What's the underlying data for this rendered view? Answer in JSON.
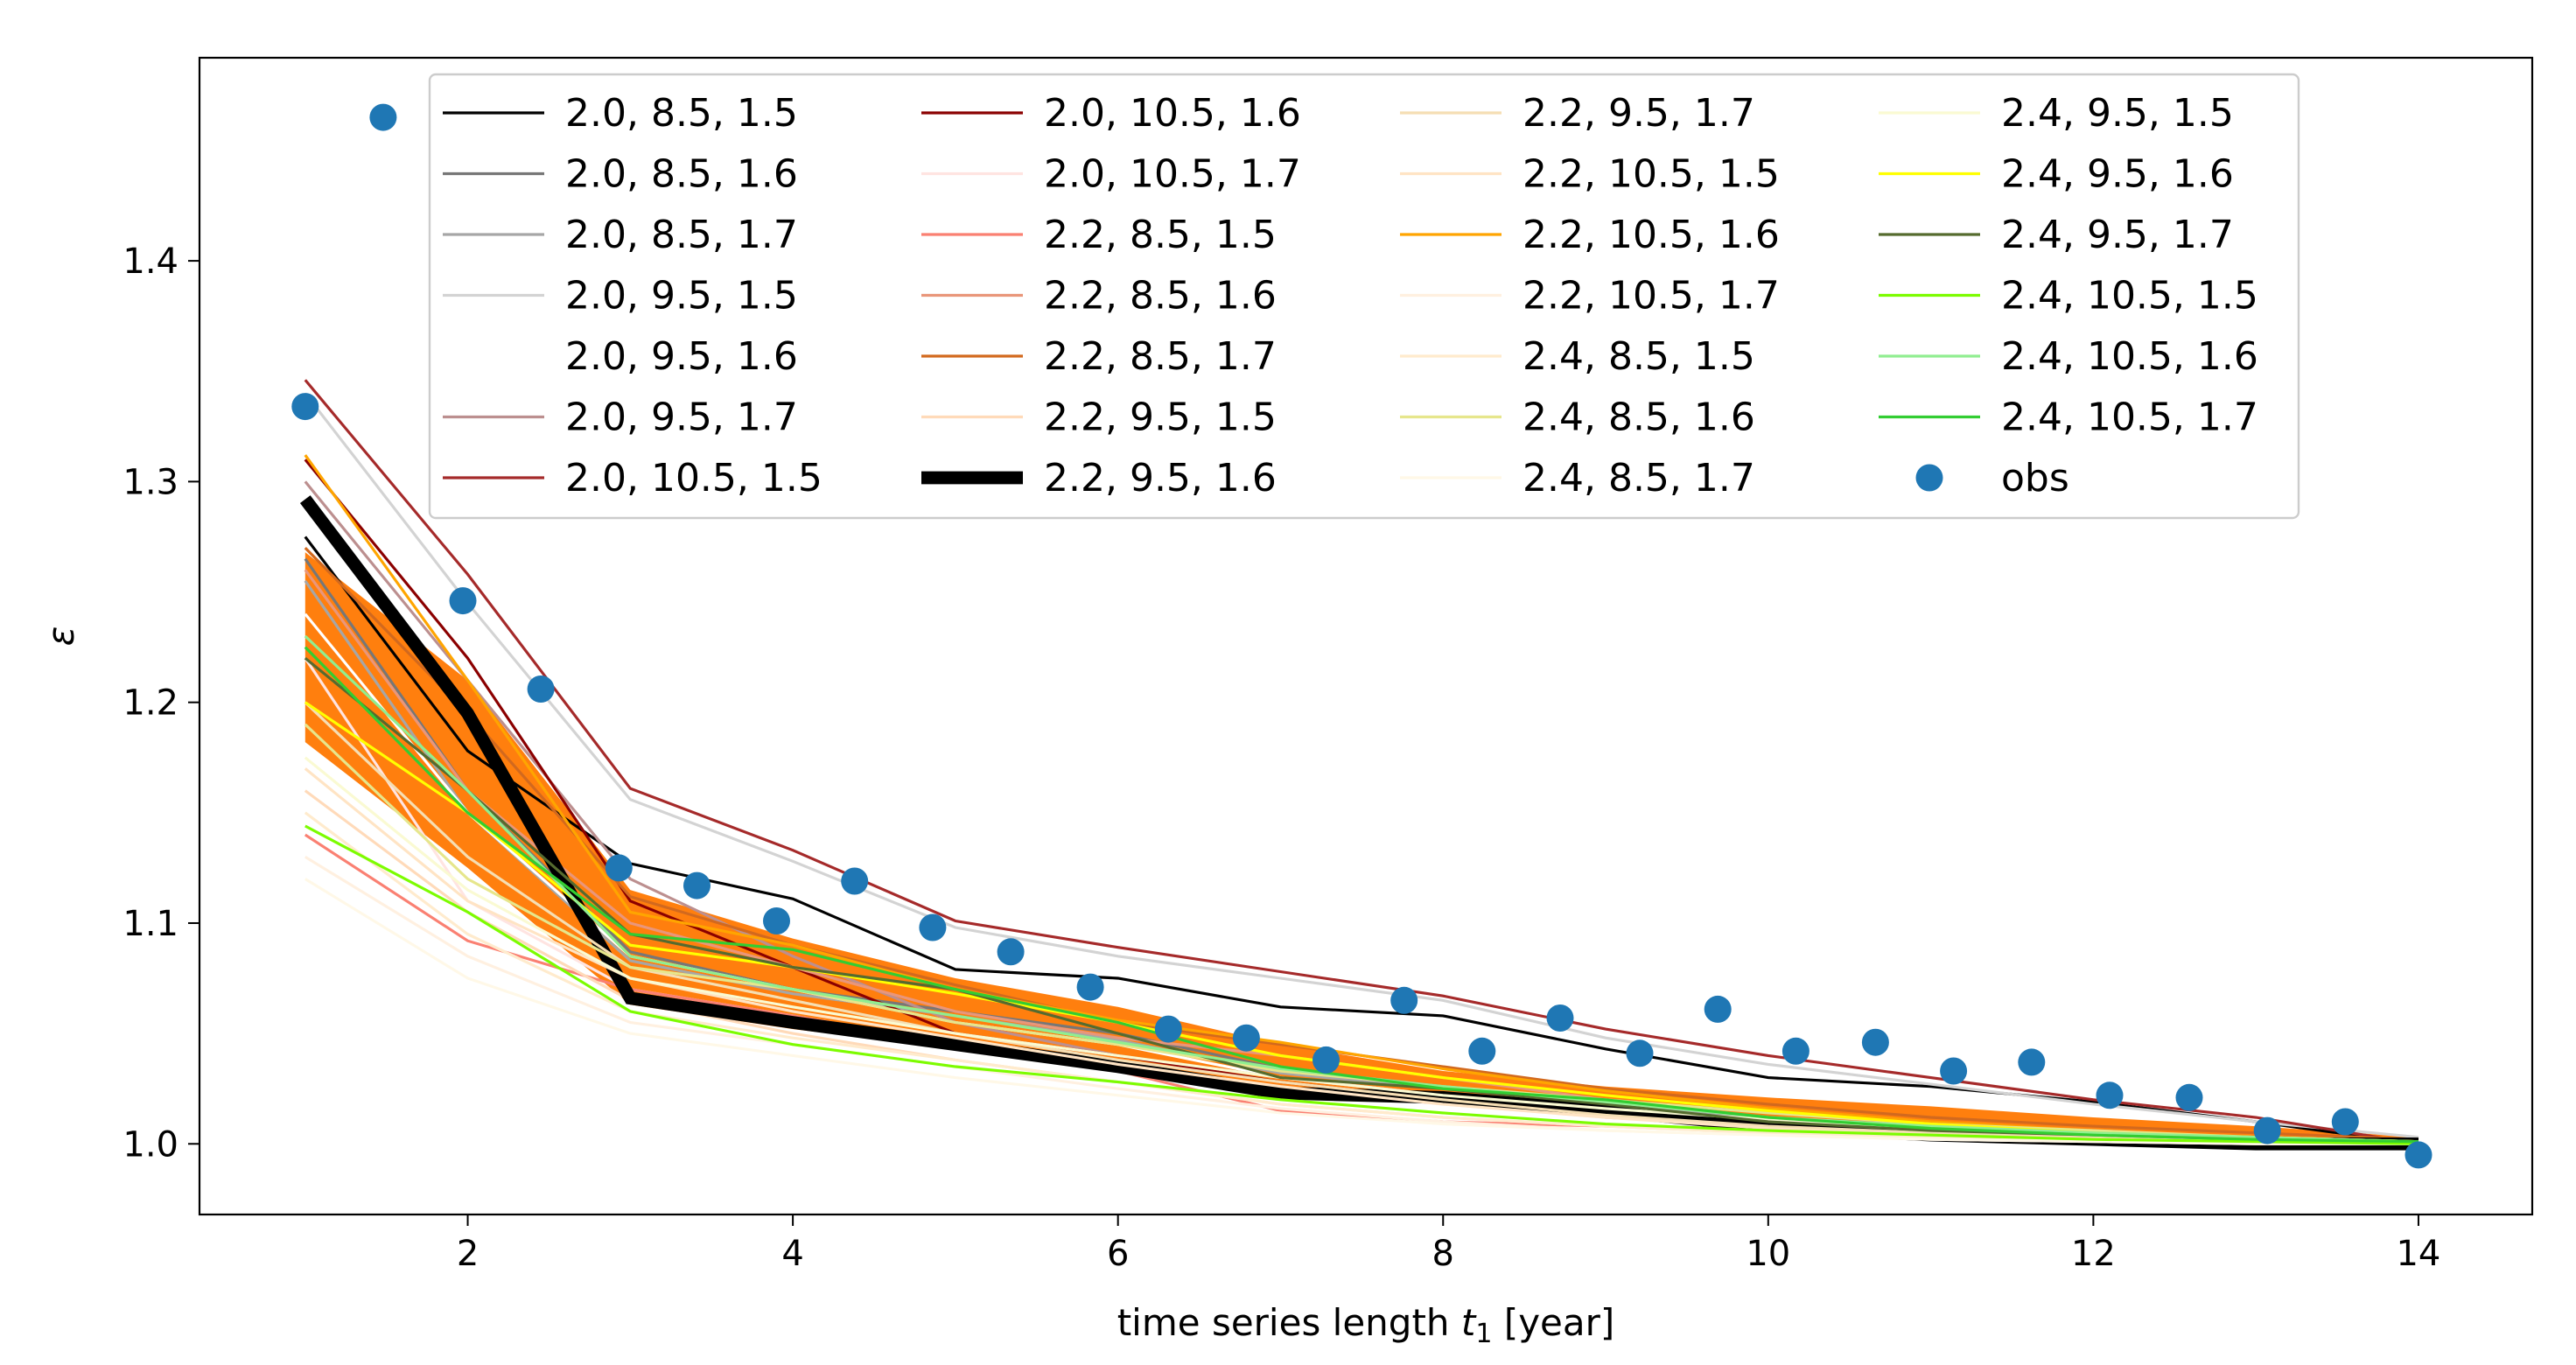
{
  "chart_data": {
    "type": "line",
    "title": "",
    "xlabel": "time series length t₁ [year]",
    "xlabel_main": "time series length ",
    "xlabel_var": "t",
    "xlabel_sub": "1",
    "xlabel_unit": " [year]",
    "ylabel": "ε",
    "xlim": [
      0.35,
      14.7
    ],
    "ylim": [
      0.968,
      1.492
    ],
    "xticks": [
      2,
      4,
      6,
      8,
      10,
      12,
      14
    ],
    "yticks": [
      1.0,
      1.1,
      1.2,
      1.3,
      1.4
    ],
    "xtick_labels": [
      "2",
      "4",
      "6",
      "8",
      "10",
      "12",
      "14"
    ],
    "ytick_labels": [
      "1.0",
      "1.1",
      "1.2",
      "1.3",
      "1.4"
    ],
    "legend_position": "top",
    "band": {
      "color": "#ff7f0e",
      "x": [
        1,
        2,
        3,
        4,
        5,
        6,
        7,
        8,
        9,
        10,
        11,
        12,
        13,
        14
      ],
      "upper": [
        1.268,
        1.21,
        1.115,
        1.093,
        1.075,
        1.062,
        1.045,
        1.033,
        1.026,
        1.021,
        1.017,
        1.012,
        1.008,
        1.003
      ],
      "lower": [
        1.182,
        1.125,
        1.063,
        1.052,
        1.043,
        1.033,
        1.022,
        1.018,
        1.012,
        1.008,
        1.006,
        1.004,
        1.002,
        1.0
      ]
    },
    "series": [
      {
        "name": "2.0, 8.5, 1.5",
        "color": "#000000",
        "width": 1.5,
        "x": [
          1,
          2,
          3,
          4,
          5,
          6,
          7,
          8,
          9,
          10,
          11,
          12,
          13,
          14
        ],
        "values": [
          1.275,
          1.178,
          1.127,
          1.111,
          1.079,
          1.075,
          1.062,
          1.058,
          1.043,
          1.03,
          1.026,
          1.019,
          1.01,
          1.0
        ]
      },
      {
        "name": "2.0, 8.5, 1.6",
        "color": "#777777",
        "width": 1.5,
        "x": [
          1,
          2,
          3,
          4,
          5,
          6,
          7,
          8,
          9,
          10,
          11,
          12,
          13,
          14
        ],
        "values": [
          1.265,
          1.16,
          1.087,
          1.07,
          1.06,
          1.05,
          1.034,
          1.026,
          1.019,
          1.012,
          1.008,
          1.005,
          1.003,
          1.001
        ]
      },
      {
        "name": "2.0, 8.5, 1.7",
        "color": "#a6a6a6",
        "width": 1.5,
        "x": [
          1,
          2,
          3,
          4,
          5,
          6,
          7,
          8,
          9,
          10,
          11,
          12,
          13,
          14
        ],
        "values": [
          1.255,
          1.15,
          1.083,
          1.068,
          1.058,
          1.047,
          1.032,
          1.025,
          1.018,
          1.011,
          1.007,
          1.005,
          1.003,
          1.001
        ]
      },
      {
        "name": "2.0, 9.5, 1.5",
        "color": "#d3d3d3",
        "width": 1.5,
        "x": [
          1,
          2,
          3,
          4,
          5,
          6,
          7,
          8,
          9,
          10,
          11,
          12,
          13,
          14
        ],
        "values": [
          1.34,
          1.245,
          1.156,
          1.128,
          1.098,
          1.085,
          1.075,
          1.065,
          1.048,
          1.036,
          1.027,
          1.018,
          1.01,
          1.003
        ]
      },
      {
        "name": "2.0, 9.5, 1.6",
        "color": "#ffffff",
        "width": 1.5,
        "x": [
          1,
          2,
          3,
          4,
          5,
          6,
          7,
          8,
          9,
          10,
          11,
          12,
          13,
          14
        ],
        "values": [
          1.24,
          1.15,
          1.085,
          1.07,
          1.055,
          1.045,
          1.03,
          1.022,
          1.016,
          1.01,
          1.006,
          1.004,
          1.002,
          1.001
        ]
      },
      {
        "name": "2.0, 9.5, 1.7",
        "color": "#bc8f8f",
        "width": 1.5,
        "x": [
          1,
          2,
          3,
          4,
          5,
          6,
          7,
          8,
          9,
          10,
          11,
          12,
          13,
          14
        ],
        "values": [
          1.3,
          1.21,
          1.12,
          1.085,
          1.055,
          1.04,
          1.03,
          1.022,
          1.012,
          1.008,
          1.005,
          1.003,
          1.001,
          1.0
        ]
      },
      {
        "name": "2.0, 10.5, 1.5",
        "color": "#a52a2a",
        "width": 1.5,
        "x": [
          1,
          2,
          3,
          4,
          5,
          6,
          7,
          8,
          9,
          10,
          11,
          12,
          13,
          14
        ],
        "values": [
          1.346,
          1.258,
          1.161,
          1.133,
          1.101,
          1.089,
          1.078,
          1.067,
          1.052,
          1.04,
          1.03,
          1.02,
          1.012,
          1.0
        ]
      },
      {
        "name": "2.0, 10.5, 1.6",
        "color": "#8b0000",
        "width": 1.5,
        "x": [
          1,
          2,
          3,
          4,
          5,
          6,
          7,
          8,
          9,
          10,
          11,
          12,
          13,
          14
        ],
        "values": [
          1.31,
          1.22,
          1.11,
          1.08,
          1.05,
          1.04,
          1.028,
          1.02,
          1.013,
          1.009,
          1.006,
          1.004,
          1.002,
          1.0
        ]
      },
      {
        "name": "2.0, 10.5, 1.7",
        "color": "#ffe4e1",
        "width": 1.5,
        "x": [
          1,
          2,
          3,
          4,
          5,
          6,
          7,
          8,
          9,
          10,
          11,
          12,
          13,
          14
        ],
        "values": [
          1.22,
          1.11,
          1.07,
          1.058,
          1.045,
          1.035,
          1.025,
          1.018,
          1.012,
          1.008,
          1.005,
          1.003,
          1.002,
          1.0
        ]
      },
      {
        "name": "2.2, 8.5, 1.5",
        "color": "#fa8072",
        "width": 1.5,
        "x": [
          1,
          2,
          3,
          4,
          5,
          6,
          7,
          8,
          9,
          10,
          11,
          12,
          13,
          14
        ],
        "values": [
          1.14,
          1.092,
          1.07,
          1.058,
          1.045,
          1.033,
          1.015,
          1.01,
          1.008,
          1.006,
          1.004,
          1.003,
          1.002,
          1.001
        ]
      },
      {
        "name": "2.2, 8.5, 1.6",
        "color": "#e9967a",
        "width": 1.5,
        "x": [
          1,
          2,
          3,
          4,
          5,
          6,
          7,
          8,
          9,
          10,
          11,
          12,
          13,
          14
        ],
        "values": [
          1.26,
          1.16,
          1.1,
          1.08,
          1.06,
          1.048,
          1.04,
          1.03,
          1.02,
          1.012,
          1.008,
          1.005,
          1.003,
          1.001
        ]
      },
      {
        "name": "2.2, 8.5, 1.7",
        "color": "#d2691e",
        "width": 1.5,
        "x": [
          1,
          2,
          3,
          4,
          5,
          6,
          7,
          8,
          9,
          10,
          11,
          12,
          13,
          14
        ],
        "values": [
          1.27,
          1.195,
          1.112,
          1.09,
          1.072,
          1.055,
          1.045,
          1.035,
          1.025,
          1.018,
          1.012,
          1.008,
          1.005,
          1.002
        ]
      },
      {
        "name": "2.2, 9.5, 1.5",
        "color": "#ffdab9",
        "width": 1.5,
        "x": [
          1,
          2,
          3,
          4,
          5,
          6,
          7,
          8,
          9,
          10,
          11,
          12,
          13,
          14
        ],
        "values": [
          1.16,
          1.105,
          1.065,
          1.05,
          1.038,
          1.028,
          1.018,
          1.012,
          1.008,
          1.005,
          1.003,
          1.002,
          1.001,
          1.0
        ]
      },
      {
        "name": "2.2, 9.5, 1.6",
        "color": "#000000",
        "width": 7,
        "x": [
          1,
          2,
          3,
          4,
          5,
          6,
          7,
          8,
          9,
          10,
          11,
          12,
          13,
          14
        ],
        "values": [
          1.292,
          1.195,
          1.066,
          1.055,
          1.045,
          1.035,
          1.023,
          1.021,
          1.015,
          1.008,
          1.004,
          1.002,
          1.0,
          1.0
        ]
      },
      {
        "name": "2.2, 9.5, 1.7",
        "color": "#f5deb3",
        "width": 1.5,
        "x": [
          1,
          2,
          3,
          4,
          5,
          6,
          7,
          8,
          9,
          10,
          11,
          12,
          13,
          14
        ],
        "values": [
          1.2,
          1.13,
          1.08,
          1.065,
          1.05,
          1.038,
          1.028,
          1.02,
          1.013,
          1.008,
          1.005,
          1.003,
          1.002,
          1.0
        ]
      },
      {
        "name": "2.2, 10.5, 1.5",
        "color": "#ffe4c4",
        "width": 1.5,
        "x": [
          1,
          2,
          3,
          4,
          5,
          6,
          7,
          8,
          9,
          10,
          11,
          12,
          13,
          14
        ],
        "values": [
          1.17,
          1.11,
          1.075,
          1.06,
          1.048,
          1.036,
          1.026,
          1.018,
          1.012,
          1.007,
          1.004,
          1.002,
          1.001,
          1.0
        ]
      },
      {
        "name": "2.2, 10.5, 1.6",
        "color": "#ffa500",
        "width": 1.5,
        "x": [
          1,
          2,
          3,
          4,
          5,
          6,
          7,
          8,
          9,
          10,
          11,
          12,
          13,
          14
        ],
        "values": [
          1.312,
          1.21,
          1.105,
          1.09,
          1.07,
          1.056,
          1.046,
          1.034,
          1.024,
          1.016,
          1.01,
          1.006,
          1.003,
          1.001
        ]
      },
      {
        "name": "2.2, 10.5, 1.7",
        "color": "#fff0e0",
        "width": 1.5,
        "x": [
          1,
          2,
          3,
          4,
          5,
          6,
          7,
          8,
          9,
          10,
          11,
          12,
          13,
          14
        ],
        "values": [
          1.13,
          1.085,
          1.055,
          1.045,
          1.035,
          1.025,
          1.016,
          1.01,
          1.006,
          1.004,
          1.002,
          1.001,
          1.0,
          1.0
        ]
      },
      {
        "name": "2.4, 8.5, 1.5",
        "color": "#ffebcd",
        "width": 1.5,
        "x": [
          1,
          2,
          3,
          4,
          5,
          6,
          7,
          8,
          9,
          10,
          11,
          12,
          13,
          14
        ],
        "values": [
          1.15,
          1.095,
          1.06,
          1.048,
          1.038,
          1.028,
          1.018,
          1.012,
          1.008,
          1.005,
          1.003,
          1.002,
          1.001,
          1.0
        ]
      },
      {
        "name": "2.4, 8.5, 1.6",
        "color": "#e6e68c",
        "width": 1.5,
        "x": [
          1,
          2,
          3,
          4,
          5,
          6,
          7,
          8,
          9,
          10,
          11,
          12,
          13,
          14
        ],
        "values": [
          1.19,
          1.12,
          1.08,
          1.07,
          1.055,
          1.045,
          1.033,
          1.026,
          1.02,
          1.014,
          1.009,
          1.006,
          1.003,
          1.001
        ]
      },
      {
        "name": "2.4, 8.5, 1.7",
        "color": "#fff8e7",
        "width": 1.5,
        "x": [
          1,
          2,
          3,
          4,
          5,
          6,
          7,
          8,
          9,
          10,
          11,
          12,
          13,
          14
        ],
        "values": [
          1.12,
          1.075,
          1.05,
          1.04,
          1.03,
          1.022,
          1.014,
          1.009,
          1.006,
          1.004,
          1.002,
          1.001,
          1.0,
          1.0
        ]
      },
      {
        "name": "2.4, 9.5, 1.5",
        "color": "#fafad2",
        "width": 1.5,
        "x": [
          1,
          2,
          3,
          4,
          5,
          6,
          7,
          8,
          9,
          10,
          11,
          12,
          13,
          14
        ],
        "values": [
          1.175,
          1.115,
          1.075,
          1.062,
          1.05,
          1.04,
          1.03,
          1.022,
          1.016,
          1.011,
          1.007,
          1.004,
          1.002,
          1.001
        ]
      },
      {
        "name": "2.4, 9.5, 1.6",
        "color": "#ffff00",
        "width": 1.5,
        "x": [
          1,
          2,
          3,
          4,
          5,
          6,
          7,
          8,
          9,
          10,
          11,
          12,
          13,
          14
        ],
        "values": [
          1.2,
          1.15,
          1.09,
          1.08,
          1.068,
          1.055,
          1.04,
          1.03,
          1.022,
          1.015,
          1.009,
          1.005,
          1.003,
          1.001
        ]
      },
      {
        "name": "2.4, 9.5, 1.7",
        "color": "#556b2f",
        "width": 1.5,
        "x": [
          1,
          2,
          3,
          4,
          5,
          6,
          7,
          8,
          9,
          10,
          11,
          12,
          13,
          14
        ],
        "values": [
          1.22,
          1.16,
          1.095,
          1.08,
          1.07,
          1.05,
          1.03,
          1.025,
          1.018,
          1.01,
          1.006,
          1.004,
          1.002,
          1.001
        ]
      },
      {
        "name": "2.4, 10.5, 1.5",
        "color": "#7cfc00",
        "width": 1.5,
        "x": [
          1,
          2,
          3,
          4,
          5,
          6,
          7,
          8,
          9,
          10,
          11,
          12,
          13,
          14
        ],
        "values": [
          1.144,
          1.105,
          1.06,
          1.045,
          1.035,
          1.028,
          1.02,
          1.014,
          1.009,
          1.006,
          1.004,
          1.002,
          1.001,
          1.0
        ]
      },
      {
        "name": "2.4, 10.5, 1.6",
        "color": "#90ee90",
        "width": 1.5,
        "x": [
          1,
          2,
          3,
          4,
          5,
          6,
          7,
          8,
          9,
          10,
          11,
          12,
          13,
          14
        ],
        "values": [
          1.23,
          1.16,
          1.085,
          1.07,
          1.058,
          1.046,
          1.034,
          1.026,
          1.019,
          1.012,
          1.008,
          1.005,
          1.003,
          1.001
        ]
      },
      {
        "name": "2.4, 10.5, 1.7",
        "color": "#32cd32",
        "width": 1.5,
        "x": [
          1,
          2,
          3,
          4,
          5,
          6,
          7,
          8,
          9,
          10,
          11,
          12,
          13,
          14
        ],
        "values": [
          1.225,
          1.15,
          1.095,
          1.088,
          1.07,
          1.055,
          1.035,
          1.025,
          1.02,
          1.012,
          1.007,
          1.004,
          1.002,
          1.001
        ]
      }
    ],
    "obs": {
      "name": "obs",
      "color": "#1f77b4",
      "x": [
        1.0,
        1.48,
        1.97,
        2.45,
        2.93,
        3.41,
        3.9,
        4.38,
        4.86,
        5.34,
        5.83,
        6.31,
        6.79,
        7.28,
        7.76,
        8.24,
        8.72,
        9.21,
        9.69,
        10.17,
        10.66,
        11.14,
        11.62,
        12.1,
        12.59,
        13.07,
        13.55,
        14.0
      ],
      "values": [
        1.334,
        1.465,
        1.246,
        1.206,
        1.125,
        1.117,
        1.101,
        1.119,
        1.098,
        1.087,
        1.071,
        1.052,
        1.048,
        1.038,
        1.065,
        1.042,
        1.057,
        1.041,
        1.061,
        1.042,
        1.046,
        1.033,
        1.037,
        1.022,
        1.021,
        1.006,
        1.01,
        0.995
      ]
    }
  }
}
